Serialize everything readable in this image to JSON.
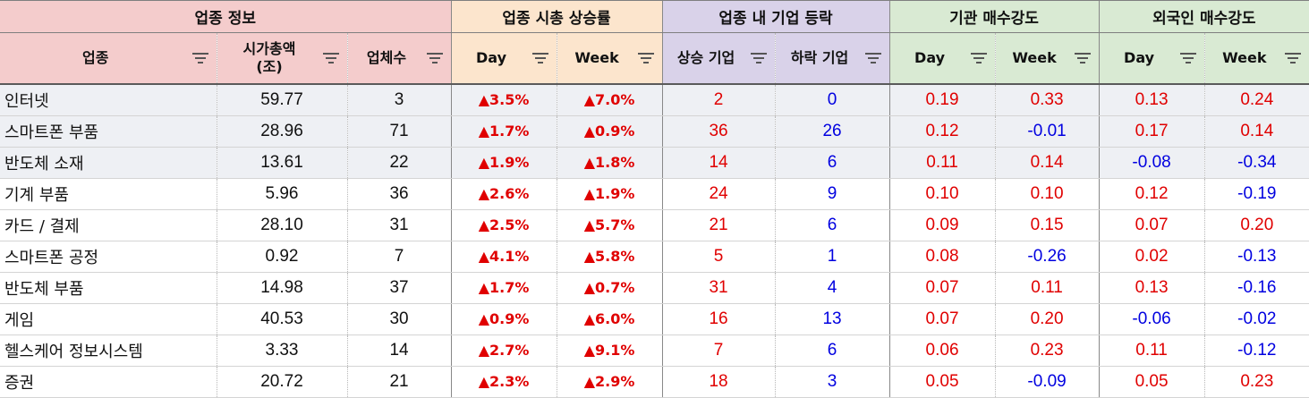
{
  "groups": {
    "info": "업종 정보",
    "cap_change": "업종 시총 상승률",
    "firm_change": "업종 내 기업 등락",
    "institution": "기관 매수강도",
    "foreign": "외국인 매수강도"
  },
  "headers": {
    "sector": "업종",
    "market_cap_line1": "시가총액",
    "market_cap_line2": "(조)",
    "companies": "업체수",
    "day": "Day",
    "week": "Week",
    "rising": "상승 기업",
    "falling": "하락 기업"
  },
  "colors": {
    "red": "#e00000",
    "blue": "#0000e0",
    "info": "#f4cccc",
    "cap": "#fce5cd",
    "firm": "#d9d2e9",
    "flow": "#d9ead3"
  },
  "filter_icon": "filter-icon",
  "rows": [
    {
      "sector": "인터넷",
      "cap": "59.77",
      "count": "3",
      "cap_day": "▲3.5%",
      "cap_week": "▲7.0%",
      "up": "2",
      "down": "0",
      "inst_day": "0.19",
      "inst_week": "0.33",
      "for_day": "0.13",
      "for_week": "0.24"
    },
    {
      "sector": "스마트폰 부품",
      "cap": "28.96",
      "count": "71",
      "cap_day": "▲1.7%",
      "cap_week": "▲0.9%",
      "up": "36",
      "down": "26",
      "inst_day": "0.12",
      "inst_week": "-0.01",
      "for_day": "0.17",
      "for_week": "0.14"
    },
    {
      "sector": "반도체 소재",
      "cap": "13.61",
      "count": "22",
      "cap_day": "▲1.9%",
      "cap_week": "▲1.8%",
      "up": "14",
      "down": "6",
      "inst_day": "0.11",
      "inst_week": "0.14",
      "for_day": "-0.08",
      "for_week": "-0.34"
    },
    {
      "sector": "기계 부품",
      "cap": "5.96",
      "count": "36",
      "cap_day": "▲2.6%",
      "cap_week": "▲1.9%",
      "up": "24",
      "down": "9",
      "inst_day": "0.10",
      "inst_week": "0.10",
      "for_day": "0.12",
      "for_week": "-0.19"
    },
    {
      "sector": "카드 / 결제",
      "cap": "28.10",
      "count": "31",
      "cap_day": "▲2.5%",
      "cap_week": "▲5.7%",
      "up": "21",
      "down": "6",
      "inst_day": "0.09",
      "inst_week": "0.15",
      "for_day": "0.07",
      "for_week": "0.20"
    },
    {
      "sector": "스마트폰 공정",
      "cap": "0.92",
      "count": "7",
      "cap_day": "▲4.1%",
      "cap_week": "▲5.8%",
      "up": "5",
      "down": "1",
      "inst_day": "0.08",
      "inst_week": "-0.26",
      "for_day": "0.02",
      "for_week": "-0.13"
    },
    {
      "sector": "반도체 부품",
      "cap": "14.98",
      "count": "37",
      "cap_day": "▲1.7%",
      "cap_week": "▲0.7%",
      "up": "31",
      "down": "4",
      "inst_day": "0.07",
      "inst_week": "0.11",
      "for_day": "0.13",
      "for_week": "-0.16"
    },
    {
      "sector": "게임",
      "cap": "40.53",
      "count": "30",
      "cap_day": "▲0.9%",
      "cap_week": "▲6.0%",
      "up": "16",
      "down": "13",
      "inst_day": "0.07",
      "inst_week": "0.20",
      "for_day": "-0.06",
      "for_week": "-0.02"
    },
    {
      "sector": "헬스케어 정보시스템",
      "cap": "3.33",
      "count": "14",
      "cap_day": "▲2.7%",
      "cap_week": "▲9.1%",
      "up": "7",
      "down": "6",
      "inst_day": "0.06",
      "inst_week": "0.23",
      "for_day": "0.11",
      "for_week": "-0.12"
    },
    {
      "sector": "증권",
      "cap": "20.72",
      "count": "21",
      "cap_day": "▲2.3%",
      "cap_week": "▲2.9%",
      "up": "18",
      "down": "3",
      "inst_day": "0.05",
      "inst_week": "-0.09",
      "for_day": "0.05",
      "for_week": "0.23"
    }
  ]
}
